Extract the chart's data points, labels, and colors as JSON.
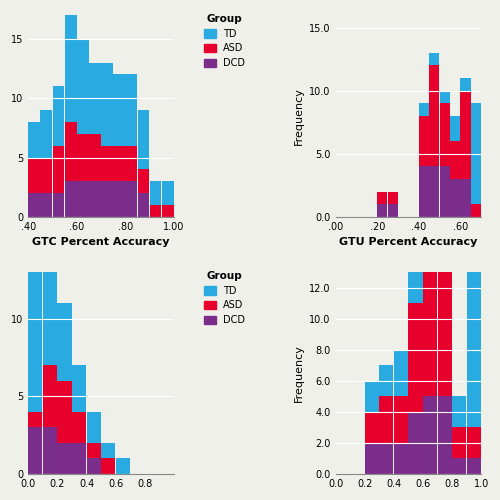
{
  "td_color": "#29ABE2",
  "asd_color": "#E8002D",
  "dcd_color": "#7B2D8B",
  "background_color": "#F0F0EB",
  "gtc": {
    "xlabel": "GTC Percent Accuracy",
    "bin_edges": [
      0.4,
      0.45,
      0.5,
      0.55,
      0.6,
      0.65,
      0.7,
      0.75,
      0.8,
      0.85,
      0.9,
      0.95,
      1.0
    ],
    "td": [
      3,
      4,
      5,
      10,
      8,
      6,
      7,
      6,
      6,
      5,
      2,
      2
    ],
    "asd": [
      3,
      3,
      4,
      5,
      4,
      4,
      3,
      3,
      3,
      2,
      1,
      1
    ],
    "dcd": [
      2,
      2,
      2,
      3,
      3,
      3,
      3,
      3,
      3,
      2,
      0,
      0
    ],
    "xticks": [
      0.4,
      0.6,
      0.8,
      1.0
    ],
    "xticklabels": [
      ".40",
      ".60",
      ".80",
      "1.00"
    ],
    "ylim": [
      0,
      17
    ],
    "yticks": [
      0,
      5,
      10,
      15
    ],
    "yticklabels": [
      "0",
      "5",
      "10",
      "15"
    ]
  },
  "gtu": {
    "xlabel": "GTU Percent Accuracy",
    "bin_edges": [
      0.0,
      0.05,
      0.1,
      0.15,
      0.2,
      0.25,
      0.3,
      0.35,
      0.4,
      0.45,
      0.5,
      0.55,
      0.6,
      0.65,
      0.7
    ],
    "td": [
      0,
      0,
      0,
      0,
      0,
      0,
      0,
      0,
      1,
      1,
      1,
      2,
      1,
      8
    ],
    "asd": [
      0,
      0,
      0,
      0,
      1,
      1,
      0,
      0,
      4,
      8,
      5,
      3,
      7,
      1
    ],
    "dcd": [
      0,
      0,
      0,
      0,
      1,
      1,
      0,
      0,
      4,
      4,
      4,
      3,
      3,
      0
    ],
    "xticks": [
      0.0,
      0.2,
      0.4,
      0.6
    ],
    "xticklabels": [
      ".00",
      ".20",
      ".40",
      ".60"
    ],
    "ylim": [
      0,
      16
    ],
    "yticks": [
      0.0,
      5.0,
      10.0,
      15.0
    ],
    "yticklabels": [
      "0.0",
      "5.0",
      "10.0",
      "15.0"
    ]
  },
  "plot3": {
    "xlabel": "",
    "bin_edges": [
      0.0,
      0.1,
      0.2,
      0.3,
      0.4,
      0.5,
      0.6,
      0.7,
      0.8,
      0.9,
      1.0
    ],
    "td": [
      10,
      7,
      5,
      3,
      2,
      1,
      1,
      0,
      0,
      0
    ],
    "asd": [
      1,
      4,
      4,
      2,
      1,
      1,
      0,
      0,
      0,
      0
    ],
    "dcd": [
      3,
      3,
      2,
      2,
      1,
      0,
      0,
      0,
      0,
      0
    ],
    "xticks": [
      0.0,
      0.2,
      0.4,
      0.6,
      0.8
    ],
    "xticklabels": [
      "0.0",
      "0.2",
      "0.4",
      "0.6",
      "0.8"
    ],
    "ylim": [
      0,
      13
    ],
    "yticks": [
      0,
      5,
      10
    ],
    "yticklabels": [
      "0",
      "5",
      "10"
    ]
  },
  "plot4": {
    "xlabel": "",
    "bin_edges": [
      0.0,
      0.1,
      0.2,
      0.3,
      0.4,
      0.5,
      0.6,
      0.7,
      0.8,
      0.9,
      1.0
    ],
    "td": [
      0,
      0,
      2,
      2,
      3,
      6,
      11,
      2,
      2,
      11
    ],
    "asd": [
      0,
      0,
      2,
      3,
      3,
      7,
      8,
      8,
      2,
      2
    ],
    "dcd": [
      0,
      0,
      2,
      2,
      2,
      4,
      5,
      5,
      1,
      1
    ],
    "xticks": [
      0.0,
      0.2,
      0.4,
      0.6,
      0.8,
      1.0
    ],
    "xticklabels": [
      "0.0",
      "0.2",
      "0.4",
      "0.6",
      "0.8",
      "1.0"
    ],
    "ylim": [
      0,
      13
    ],
    "yticks": [
      0,
      2,
      4,
      6,
      8,
      10,
      12
    ],
    "yticklabels": [
      "0.0",
      "2.0",
      "4.0",
      "6.0",
      "8.0",
      "10.0",
      "12.0"
    ]
  },
  "ylabel": "Frequency",
  "legend_title": "Group",
  "legend_labels": [
    "TD",
    "ASD",
    "DCD"
  ]
}
